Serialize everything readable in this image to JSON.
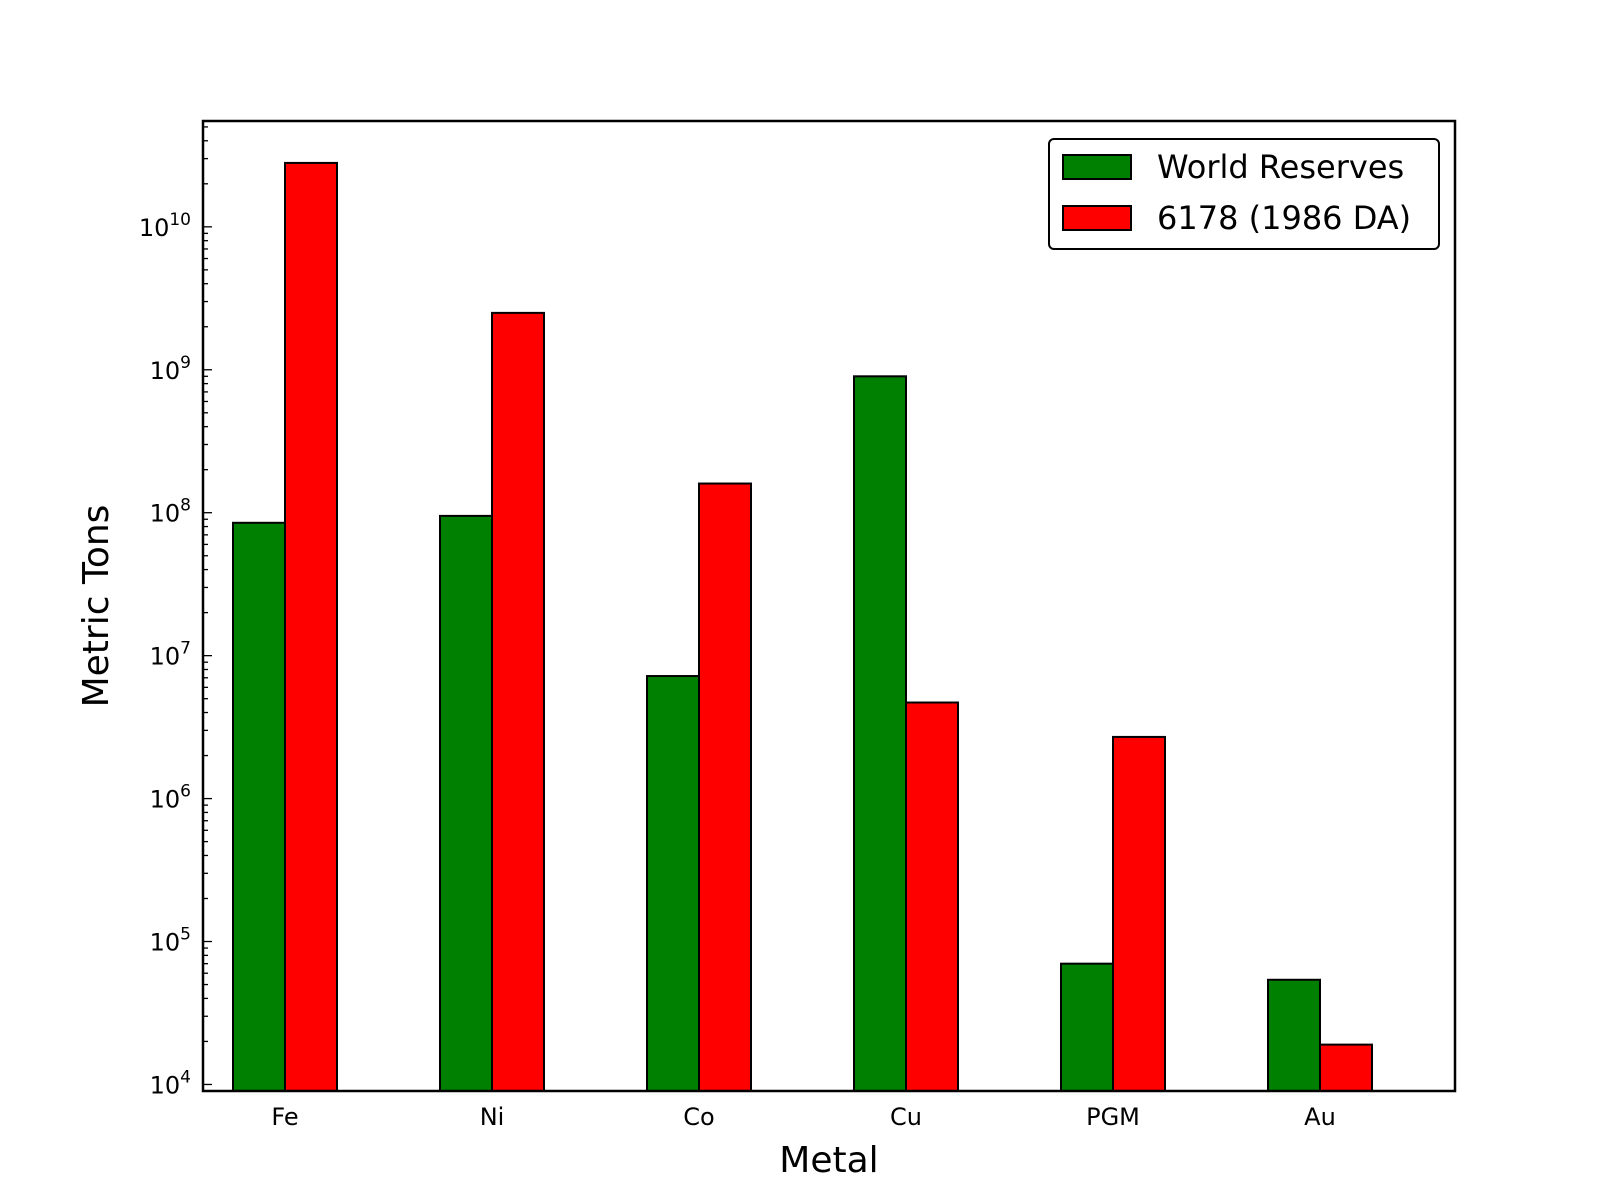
{
  "chart_data": {
    "type": "bar",
    "title": "",
    "xlabel": "Metal",
    "ylabel": "Metric Tons",
    "yscale": "log",
    "ylim": [
      9000,
      55000000000
    ],
    "grid": false,
    "legend_position": "top-right",
    "categories": [
      "Fe",
      "Ni",
      "Co",
      "Cu",
      "PGM",
      "Au"
    ],
    "yticks": [
      {
        "value": 10000,
        "base": "10",
        "exp": "4"
      },
      {
        "value": 100000,
        "base": "10",
        "exp": "5"
      },
      {
        "value": 1000000,
        "base": "10",
        "exp": "6"
      },
      {
        "value": 10000000,
        "base": "10",
        "exp": "7"
      },
      {
        "value": 100000000,
        "base": "10",
        "exp": "8"
      },
      {
        "value": 1000000000,
        "base": "10",
        "exp": "9"
      },
      {
        "value": 10000000000,
        "base": "10",
        "exp": "10"
      }
    ],
    "series": [
      {
        "name": "World Reserves",
        "color": "#008000",
        "values": [
          85000000,
          95000000,
          7200000,
          900000000,
          70000,
          54000
        ]
      },
      {
        "name": "6178 (1986 DA)",
        "color": "#ff0000",
        "values": [
          28000000000,
          2500000000,
          160000000,
          4700000,
          2700000,
          19000
        ]
      }
    ]
  }
}
